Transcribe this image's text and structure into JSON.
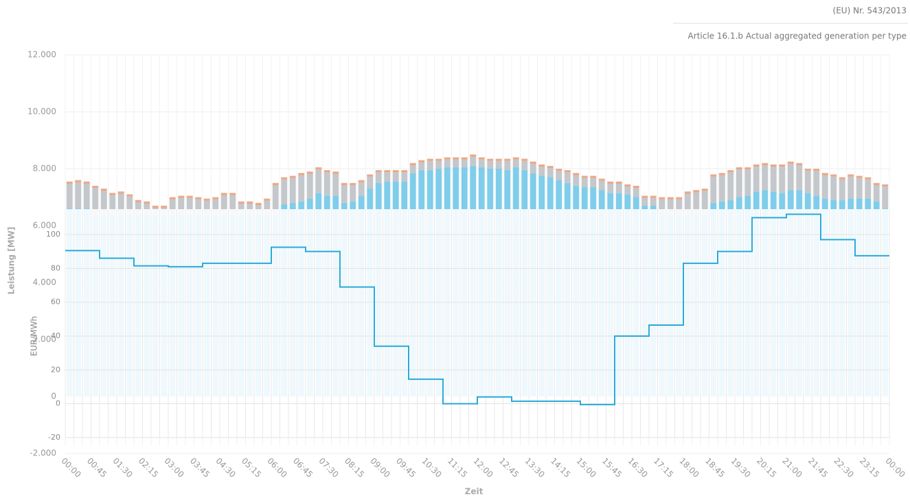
{
  "chart_data": [
    {
      "type": "bar",
      "stacked": true,
      "title": "(EU) Nr. 543/2013",
      "subtitle": "Article 16.1.b Actual aggregated generation per type",
      "ylabel": "Leistung [MW]",
      "xlabel": "Zeit",
      "ylim": [
        -2000,
        12000
      ],
      "yticks": [
        {
          "value": -2000,
          "label": "-2.000"
        },
        0,
        {
          "value": 2000,
          "label": "2.000"
        },
        {
          "value": 4000,
          "label": "4.000"
        },
        {
          "value": 6000,
          "label": "6.000"
        },
        {
          "value": 8000,
          "label": "8.000"
        },
        {
          "value": 10000,
          "label": "10.000"
        },
        {
          "value": 12000,
          "label": "12.000"
        }
      ],
      "x_labels": [
        "00:00",
        "00:45",
        "01:30",
        "02:15",
        "03:00",
        "03:45",
        "04:30",
        "05:15",
        "06:00",
        "06:45",
        "07:30",
        "08:15",
        "09:00",
        "09:45",
        "10:30",
        "11:15",
        "12:00",
        "12:45",
        "13:30",
        "14:15",
        "15:00",
        "15:45",
        "16:30",
        "17:15",
        "18:00",
        "18:45",
        "19:30",
        "20:15",
        "21:00",
        "21:45",
        "22:30",
        "23:15",
        "00:00"
      ],
      "series": [
        {
          "color": "#7fcdea",
          "values": [
            6600,
            6600,
            6600,
            6400,
            6400,
            6400,
            6400,
            6400,
            6400,
            6400,
            6400,
            6400,
            6400,
            6400,
            6400,
            6400,
            6400,
            6400,
            6400,
            6400,
            6400,
            6400,
            6400,
            6400,
            6400,
            6750,
            6800,
            6850,
            6950,
            7150,
            7050,
            7050,
            6800,
            6850,
            7050,
            7300,
            7500,
            7550,
            7550,
            7550,
            7850,
            7950,
            7950,
            8000,
            8050,
            8050,
            8050,
            8100,
            8050,
            8000,
            8000,
            7950,
            8050,
            7950,
            7850,
            7750,
            7700,
            7600,
            7500,
            7400,
            7350,
            7350,
            7250,
            7150,
            7150,
            7100,
            7000,
            6700,
            6700,
            6400,
            6400,
            6400,
            6400,
            6400,
            6400,
            6800,
            6850,
            6900,
            7000,
            7050,
            7200,
            7250,
            7200,
            7150,
            7250,
            7250,
            7150,
            7050,
            6950,
            6900,
            6900,
            6950,
            6950,
            6950,
            6850,
            6600
          ]
        },
        {
          "color": "#c4c7cb",
          "values": [
            870,
            920,
            870,
            920,
            820,
            670,
            720,
            620,
            420,
            370,
            220,
            220,
            520,
            570,
            570,
            520,
            470,
            520,
            670,
            670,
            370,
            370,
            320,
            470,
            1020,
            870,
            870,
            920,
            870,
            820,
            820,
            770,
            620,
            570,
            470,
            420,
            370,
            320,
            320,
            320,
            270,
            270,
            320,
            270,
            270,
            270,
            270,
            320,
            270,
            270,
            270,
            320,
            270,
            320,
            320,
            320,
            320,
            320,
            370,
            370,
            320,
            320,
            320,
            320,
            320,
            270,
            320,
            270,
            270,
            520,
            520,
            520,
            720,
            770,
            820,
            920,
            920,
            970,
            970,
            920,
            870,
            870,
            870,
            920,
            920,
            870,
            770,
            870,
            820,
            820,
            720,
            770,
            720,
            670,
            570,
            770
          ]
        },
        {
          "color": "#eaa98a",
          "values": [
            80,
            80,
            80,
            80,
            80,
            80,
            80,
            80,
            80,
            80,
            80,
            80,
            80,
            80,
            80,
            80,
            80,
            80,
            80,
            80,
            80,
            80,
            80,
            80,
            80,
            80,
            80,
            80,
            80,
            80,
            80,
            80,
            80,
            80,
            80,
            80,
            80,
            80,
            80,
            80,
            80,
            80,
            80,
            80,
            80,
            80,
            80,
            80,
            80,
            80,
            80,
            80,
            80,
            80,
            80,
            80,
            80,
            80,
            80,
            80,
            80,
            80,
            80,
            80,
            80,
            80,
            80,
            80,
            80,
            80,
            80,
            80,
            80,
            80,
            80,
            80,
            80,
            80,
            80,
            80,
            80,
            80,
            80,
            80,
            80,
            80,
            80,
            80,
            80,
            80,
            80,
            80,
            80,
            80,
            80,
            80
          ]
        }
      ]
    },
    {
      "type": "line",
      "step": true,
      "ylabel": "EUR/MWh",
      "color": "#29a9d9",
      "ylim": [
        -20,
        115
      ],
      "yticks": [
        -20,
        0,
        20,
        40,
        60,
        80,
        100
      ],
      "grid": true,
      "values": [
        90.5,
        86,
        81.5,
        81,
        83,
        83,
        92.5,
        90,
        69,
        34,
        14.5,
        0,
        4,
        1.5,
        1.5,
        -0.5,
        40,
        46.5,
        83,
        90,
        110,
        112,
        97,
        87.5
      ]
    }
  ]
}
